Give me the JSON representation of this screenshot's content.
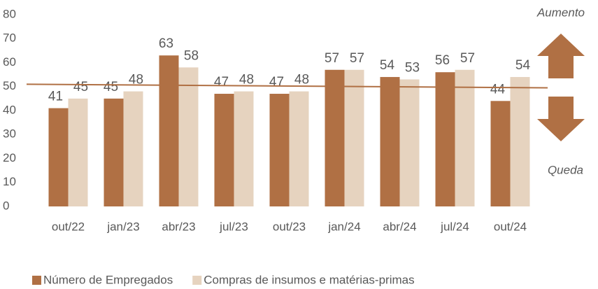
{
  "chart_data": {
    "type": "bar",
    "categories": [
      "out/22",
      "jan/23",
      "abr/23",
      "jul/23",
      "out/23",
      "jan/24",
      "abr/24",
      "jul/24",
      "out/24"
    ],
    "series": [
      {
        "name": "Número de Empregados",
        "color": "#b07044",
        "values": [
          41,
          45,
          63,
          47,
          47,
          57,
          54,
          56,
          44
        ]
      },
      {
        "name": "Compras de insumos e matérias-primas",
        "color": "#e6d3bf",
        "values": [
          45,
          48,
          58,
          48,
          48,
          57,
          53,
          57,
          54
        ]
      }
    ],
    "reference_line": {
      "values": [
        51,
        49.5
      ],
      "color": "#b07044"
    },
    "annotations": [
      "Aumento",
      "Queda"
    ],
    "ylim": [
      0,
      80
    ],
    "yticks": [
      0,
      10,
      20,
      30,
      40,
      50,
      60,
      70,
      80
    ],
    "grid": false,
    "legend": "bottom"
  }
}
